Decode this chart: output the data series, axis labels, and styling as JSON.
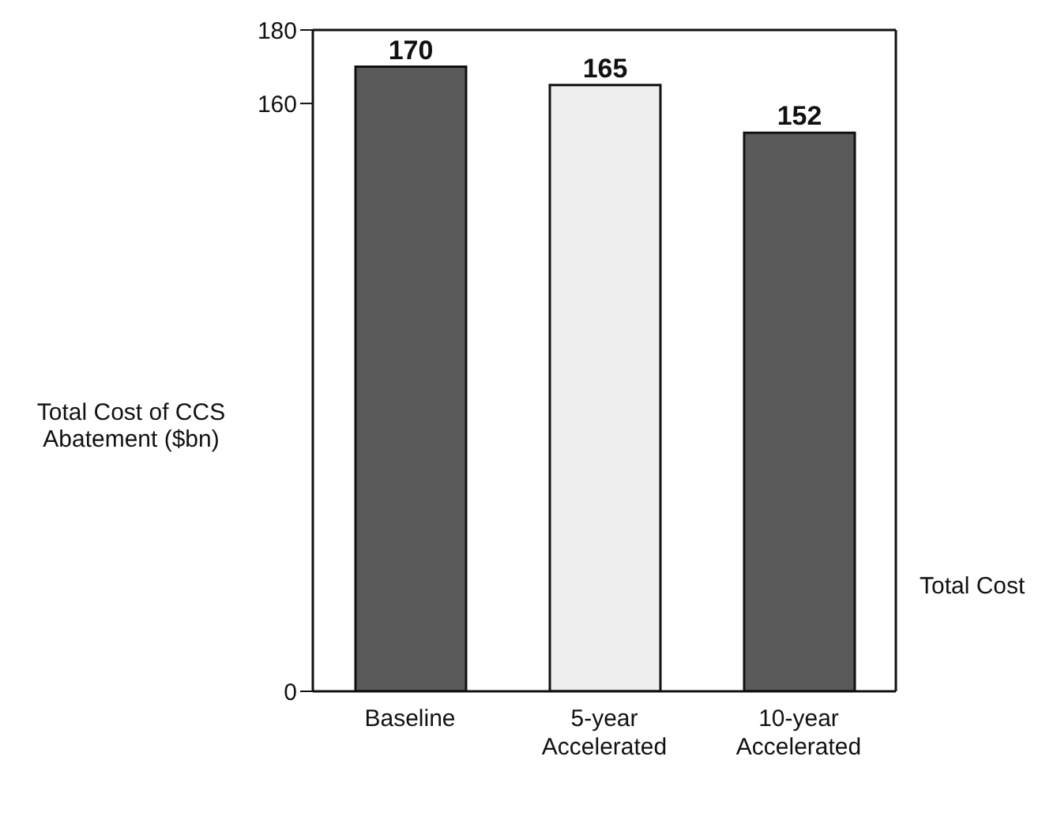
{
  "chart_data": {
    "type": "bar",
    "ylabel": "Total Cost of CCS Abatement ($bn)",
    "categories": [
      "Baseline",
      "5-year Accelerated",
      "10-year Accelerated"
    ],
    "values": [
      170,
      165,
      152
    ],
    "colors": [
      "#5a5a5a",
      "#eeeeee",
      "#5a5a5a"
    ],
    "ylim": [
      0,
      180
    ],
    "yticks": [
      0,
      160,
      180
    ],
    "data_labels": true,
    "annotations": [
      "Total Cost"
    ]
  }
}
